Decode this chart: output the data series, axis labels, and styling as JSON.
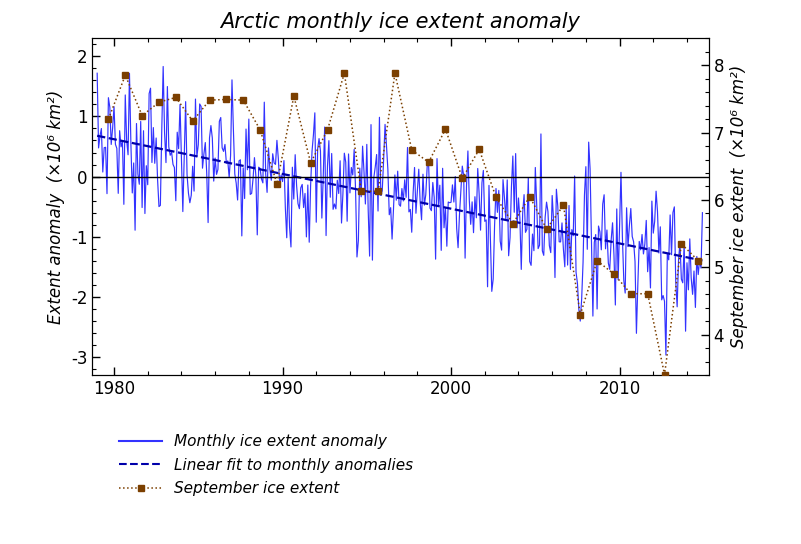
{
  "title": "Arctic monthly ice extent anomaly",
  "ylabel_left": "Extent anomaly  (×10⁶ km²)",
  "ylabel_right": "September ice extent  (×10⁶ km²)",
  "xlim": [
    1978.7,
    2015.3
  ],
  "ylim_left": [
    -3.3,
    2.3
  ],
  "ylim_right": [
    3.4,
    8.4
  ],
  "xticks": [
    1980,
    1990,
    2000,
    2010
  ],
  "yticks_left": [
    -3,
    -2,
    -1,
    0,
    1,
    2
  ],
  "yticks_right": [
    4,
    5,
    6,
    7,
    8
  ],
  "line_color": "#3333FF",
  "fit_color": "#0000AA",
  "sept_color": "#7B3F00",
  "background_color": "#FFFFFF",
  "title_fontsize": 15,
  "label_fontsize": 12,
  "tick_fontsize": 12,
  "legend_fontsize": 11
}
